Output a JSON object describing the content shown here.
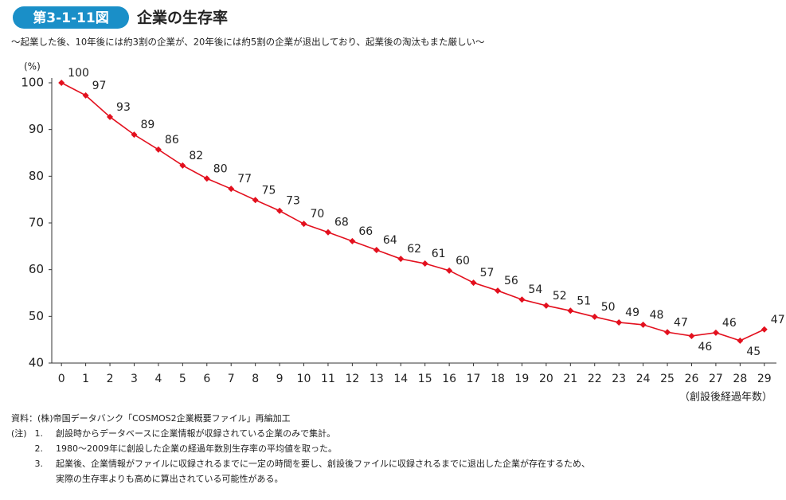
{
  "chart_data": {
    "type": "line",
    "badge": "第3-1-11図",
    "title": "企業の生存率",
    "subtitle": "～起業した後、10年後には約3割の企業が、20年後には約5割の企業が退出しており、起業後の淘汰もまた厳しい～",
    "y_label": "(%)",
    "x_label": "（創設後経過年数）",
    "x": [
      0,
      1,
      2,
      3,
      4,
      5,
      6,
      7,
      8,
      9,
      10,
      11,
      12,
      13,
      14,
      15,
      16,
      17,
      18,
      19,
      20,
      21,
      22,
      23,
      24,
      25,
      26,
      27,
      28,
      29
    ],
    "series": [
      {
        "name": "生存率",
        "color": "#e3101e",
        "values": [
          100,
          97.3,
          92.7,
          88.9,
          85.7,
          82.3,
          79.5,
          77.3,
          74.9,
          72.6,
          69.8,
          68.0,
          66.1,
          64.2,
          62.3,
          61.3,
          59.8,
          57.2,
          55.5,
          53.6,
          52.3,
          51.2,
          49.9,
          48.7,
          48.2,
          46.6,
          45.8,
          46.5,
          44.8,
          47.2
        ],
        "value_labels": [
          "100",
          "97",
          "93",
          "89",
          "86",
          "82",
          "80",
          "77",
          "75",
          "73",
          "70",
          "68",
          "66",
          "64",
          "62",
          "61",
          "60",
          "57",
          "56",
          "54",
          "52",
          "51",
          "50",
          "49",
          "48",
          "47",
          "46",
          "46",
          "45",
          "47"
        ]
      }
    ],
    "xlim": [
      -0.4,
      29.5
    ],
    "xticks": [
      0,
      1,
      2,
      3,
      4,
      5,
      6,
      7,
      8,
      9,
      10,
      11,
      12,
      13,
      14,
      15,
      16,
      17,
      18,
      19,
      20,
      21,
      22,
      23,
      24,
      25,
      26,
      27,
      28,
      29
    ],
    "ylim": [
      40,
      100
    ],
    "yticks": [
      40,
      50,
      60,
      70,
      80,
      90,
      100
    ],
    "source": "資料：(株)帝国データバンク「COSMOS2企業概要ファイル」再編加工",
    "notes_label": "(注)",
    "notes": [
      {
        "number": "1.",
        "lines": [
          "創設時からデータベースに企業情報が収録されている企業のみで集計。"
        ]
      },
      {
        "number": "2.",
        "lines": [
          "1980～2009年に創設した企業の経過年数別生存率の平均値を取った。"
        ]
      },
      {
        "number": "3.",
        "lines": [
          "起業後、企業情報がファイルに収録されるまでに一定の時間を要し、創設後ファイルに収録されるまでに退出した企業が存在するため、",
          "実際の生存率よりも高めに算出されている可能性がある。"
        ]
      }
    ]
  }
}
